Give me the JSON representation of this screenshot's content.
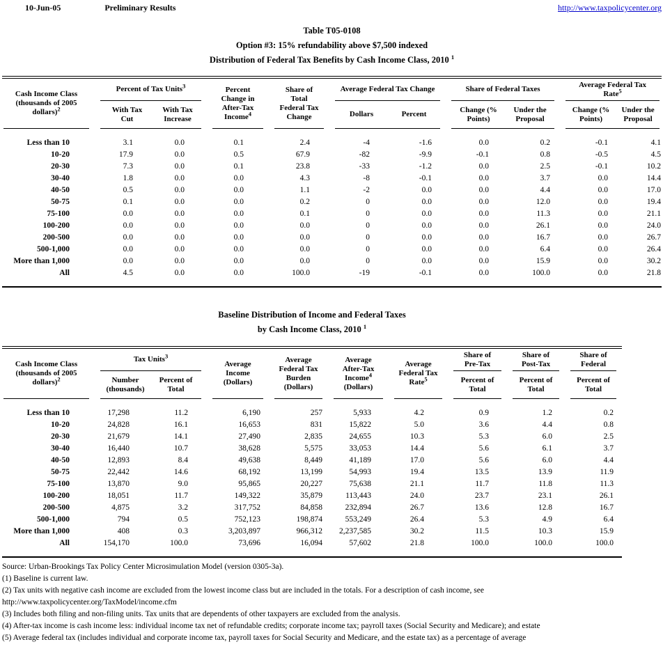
{
  "header": {
    "date": "10-Jun-05",
    "status": "Preliminary Results",
    "link": "http://www.taxpolicycenter.org",
    "link_color": "#0000cc"
  },
  "table1": {
    "title": [
      "Table T05-0108",
      "Option #3: 15% refundability above $7,500 indexed",
      "Distribution of Federal Tax Benefits by Cash Income Class, 2010"
    ],
    "title_sup": "1",
    "head": {
      "col1": [
        "Cash Income Class",
        "(thousands of 2005",
        "dollars)"
      ],
      "col1_sup": "2",
      "tax_units_group": "Percent of Tax Units",
      "tax_units_sup": "3",
      "with_tax_cut": [
        "With Tax",
        "Cut"
      ],
      "with_tax_increase": [
        "With Tax",
        "Increase"
      ],
      "pct_change": [
        "Percent",
        "Change in",
        "After-Tax",
        "Income"
      ],
      "pct_change_sup": "4",
      "share_total": [
        "Share of",
        "Total",
        "Federal Tax",
        "Change"
      ],
      "avg_change_group": "Average Federal Tax Change",
      "dollars": "Dollars",
      "percent": "Percent",
      "share_fed_group": "Share of Federal Taxes",
      "change_pts": [
        "Change (%",
        "Points)"
      ],
      "under_proposal": [
        "Under the",
        "Proposal"
      ],
      "rate_group": [
        "Average Federal Tax",
        "Rate"
      ],
      "rate_sup": "5"
    },
    "rows": [
      {
        "label": "Less than 10",
        "values": [
          "3.1",
          "0.0",
          "0.1",
          "2.4",
          "-4",
          "-1.6",
          "0.0",
          "0.2",
          "-0.1",
          "4.1"
        ]
      },
      {
        "label": "10-20",
        "values": [
          "17.9",
          "0.0",
          "0.5",
          "67.9",
          "-82",
          "-9.9",
          "-0.1",
          "0.8",
          "-0.5",
          "4.5"
        ]
      },
      {
        "label": "20-30",
        "values": [
          "7.3",
          "0.0",
          "0.1",
          "23.8",
          "-33",
          "-1.2",
          "0.0",
          "2.5",
          "-0.1",
          "10.2"
        ]
      },
      {
        "label": "30-40",
        "values": [
          "1.8",
          "0.0",
          "0.0",
          "4.3",
          "-8",
          "-0.1",
          "0.0",
          "3.7",
          "0.0",
          "14.4"
        ]
      },
      {
        "label": "40-50",
        "values": [
          "0.5",
          "0.0",
          "0.0",
          "1.1",
          "-2",
          "0.0",
          "0.0",
          "4.4",
          "0.0",
          "17.0"
        ]
      },
      {
        "label": "50-75",
        "values": [
          "0.1",
          "0.0",
          "0.0",
          "0.2",
          "0",
          "0.0",
          "0.0",
          "12.0",
          "0.0",
          "19.4"
        ]
      },
      {
        "label": "75-100",
        "values": [
          "0.0",
          "0.0",
          "0.0",
          "0.1",
          "0",
          "0.0",
          "0.0",
          "11.3",
          "0.0",
          "21.1"
        ]
      },
      {
        "label": "100-200",
        "values": [
          "0.0",
          "0.0",
          "0.0",
          "0.0",
          "0",
          "0.0",
          "0.0",
          "26.1",
          "0.0",
          "24.0"
        ]
      },
      {
        "label": "200-500",
        "values": [
          "0.0",
          "0.0",
          "0.0",
          "0.0",
          "0",
          "0.0",
          "0.0",
          "16.7",
          "0.0",
          "26.7"
        ]
      },
      {
        "label": "500-1,000",
        "values": [
          "0.0",
          "0.0",
          "0.0",
          "0.0",
          "0",
          "0.0",
          "0.0",
          "6.4",
          "0.0",
          "26.4"
        ]
      },
      {
        "label": "More than 1,000",
        "values": [
          "0.0",
          "0.0",
          "0.0",
          "0.0",
          "0",
          "0.0",
          "0.0",
          "15.9",
          "0.0",
          "30.2"
        ]
      },
      {
        "label": "All",
        "values": [
          "4.5",
          "0.0",
          "0.0",
          "100.0",
          "-19",
          "-0.1",
          "0.0",
          "100.0",
          "0.0",
          "21.8"
        ]
      }
    ]
  },
  "table2": {
    "title": [
      "Baseline Distribution of Income and Federal Taxes",
      "by Cash Income Class, 2010"
    ],
    "title_sup": "1",
    "head": {
      "col1": [
        "Cash Income Class",
        "(thousands of 2005",
        "dollars)"
      ],
      "col1_sup": "2",
      "tax_units_group": "Tax Units",
      "tax_units_sup": "3",
      "number": [
        "Number",
        "(thousands)"
      ],
      "pct_total": [
        "Percent of",
        "Total"
      ],
      "avg_income": [
        "Average",
        "Income",
        "(Dollars)"
      ],
      "avg_burden": [
        "Average",
        "Federal Tax",
        "Burden",
        "(Dollars)"
      ],
      "avg_after_tax": [
        "Average",
        "After-Tax",
        "Income",
        "(Dollars)"
      ],
      "after_tax_sup": "4",
      "avg_rate": [
        "Average",
        "Federal Tax",
        "Rate"
      ],
      "rate_sup": "5",
      "share_pre": [
        "Share of",
        "Pre-Tax"
      ],
      "share_post": [
        "Share of",
        "Post-Tax"
      ],
      "share_fed": [
        "Share of",
        "Federal"
      ],
      "pct_of_total": [
        "Percent of",
        "Total"
      ]
    },
    "rows": [
      {
        "label": "Less than 10",
        "values": [
          "17,298",
          "11.2",
          "6,190",
          "257",
          "5,933",
          "4.2",
          "0.9",
          "1.2",
          "0.2"
        ]
      },
      {
        "label": "10-20",
        "values": [
          "24,828",
          "16.1",
          "16,653",
          "831",
          "15,822",
          "5.0",
          "3.6",
          "4.4",
          "0.8"
        ]
      },
      {
        "label": "20-30",
        "values": [
          "21,679",
          "14.1",
          "27,490",
          "2,835",
          "24,655",
          "10.3",
          "5.3",
          "6.0",
          "2.5"
        ]
      },
      {
        "label": "30-40",
        "values": [
          "16,440",
          "10.7",
          "38,628",
          "5,575",
          "33,053",
          "14.4",
          "5.6",
          "6.1",
          "3.7"
        ]
      },
      {
        "label": "40-50",
        "values": [
          "12,893",
          "8.4",
          "49,638",
          "8,449",
          "41,189",
          "17.0",
          "5.6",
          "6.0",
          "4.4"
        ]
      },
      {
        "label": "50-75",
        "values": [
          "22,442",
          "14.6",
          "68,192",
          "13,199",
          "54,993",
          "19.4",
          "13.5",
          "13.9",
          "11.9"
        ]
      },
      {
        "label": "75-100",
        "values": [
          "13,870",
          "9.0",
          "95,865",
          "20,227",
          "75,638",
          "21.1",
          "11.7",
          "11.8",
          "11.3"
        ]
      },
      {
        "label": "100-200",
        "values": [
          "18,051",
          "11.7",
          "149,322",
          "35,879",
          "113,443",
          "24.0",
          "23.7",
          "23.1",
          "26.1"
        ]
      },
      {
        "label": "200-500",
        "values": [
          "4,875",
          "3.2",
          "317,752",
          "84,858",
          "232,894",
          "26.7",
          "13.6",
          "12.8",
          "16.7"
        ]
      },
      {
        "label": "500-1,000",
        "values": [
          "794",
          "0.5",
          "752,123",
          "198,874",
          "553,249",
          "26.4",
          "5.3",
          "4.9",
          "6.4"
        ]
      },
      {
        "label": "More than 1,000",
        "values": [
          "408",
          "0.3",
          "3,203,897",
          "966,312",
          "2,237,585",
          "30.2",
          "11.5",
          "10.3",
          "15.9"
        ]
      },
      {
        "label": "All",
        "values": [
          "154,170",
          "100.0",
          "73,696",
          "16,094",
          "57,602",
          "21.8",
          "100.0",
          "100.0",
          "100.0"
        ]
      }
    ]
  },
  "notes": [
    "Source: Urban-Brookings Tax Policy Center Microsimulation Model (version 0305-3a).",
    "(1) Baseline is current law.",
    "(2) Tax units with negative cash income are excluded from the lowest income class but are included in the totals. For a description of cash income, see",
    "http://www.taxpolicycenter.org/TaxModel/income.cfm",
    "(3) Includes both filing and non-filing units.  Tax units that are dependents of other taxpayers are excluded from the analysis.",
    "(4) After-tax income is cash income less: individual income tax net of refundable credits; corporate income tax; payroll taxes (Social Security and Medicare); and estate",
    "(5) Average federal tax (includes individual and corporate income tax, payroll taxes for Social Security and Medicare, and the estate tax) as a percentage of average"
  ]
}
